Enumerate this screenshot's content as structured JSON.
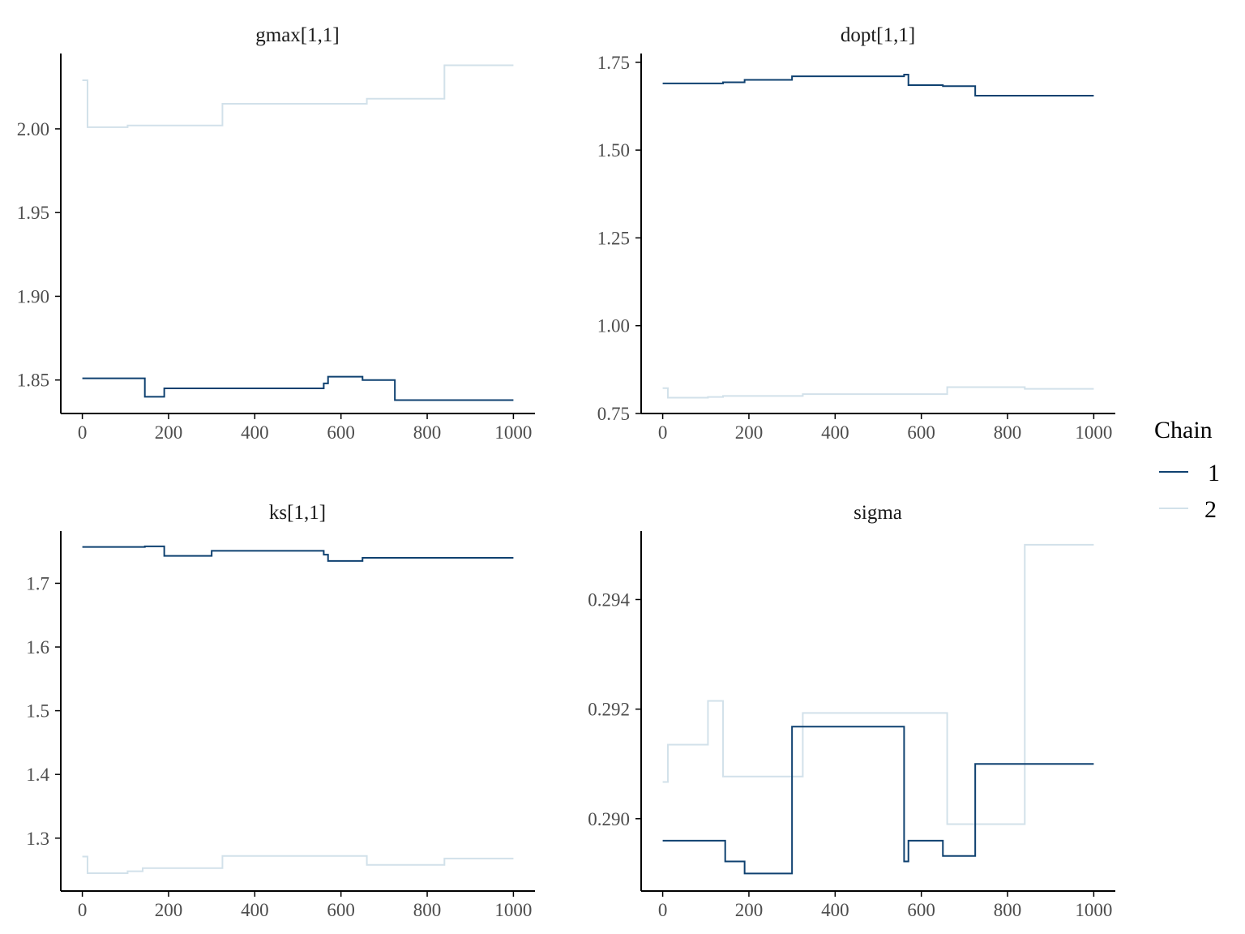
{
  "colors": {
    "chain_1": "#0f4170",
    "chain_2": "#d2e1ea",
    "axis": "#000000"
  },
  "legend": {
    "title": "Chain",
    "entries": [
      {
        "label": "1",
        "color": "#0f4170"
      },
      {
        "label": "2",
        "color": "#d2e1ea"
      }
    ]
  },
  "chart_data": [
    {
      "type": "line",
      "title": "gmax[1,1]",
      "xlim": [
        -50,
        1050
      ],
      "ylim": [
        1.83,
        2.045
      ],
      "xticks": [
        0,
        200,
        400,
        600,
        800,
        1000
      ],
      "xtick_labels": [
        "0",
        "200",
        "400",
        "600",
        "800",
        "1000"
      ],
      "yticks": [
        1.85,
        1.9,
        1.95,
        2.0
      ],
      "ytick_labels": [
        "1.85",
        "1.90",
        "1.95",
        "2.00"
      ],
      "series": [
        {
          "name": "1",
          "steps": [
            [
              0,
              1.851
            ],
            [
              145,
              1.84
            ],
            [
              190,
              1.845
            ],
            [
              300,
              1.845
            ],
            [
              560,
              1.848
            ],
            [
              570,
              1.852
            ],
            [
              650,
              1.85
            ],
            [
              725,
              1.838
            ],
            [
              1000,
              1.838
            ]
          ]
        },
        {
          "name": "2",
          "steps": [
            [
              0,
              2.029
            ],
            [
              12,
              2.001
            ],
            [
              105,
              2.002
            ],
            [
              325,
              2.015
            ],
            [
              660,
              2.018
            ],
            [
              840,
              2.038
            ],
            [
              1000,
              2.038
            ]
          ]
        }
      ]
    },
    {
      "type": "line",
      "title": "dopt[1,1]",
      "xlim": [
        -50,
        1050
      ],
      "ylim": [
        0.75,
        1.775
      ],
      "xticks": [
        0,
        200,
        400,
        600,
        800,
        1000
      ],
      "xtick_labels": [
        "0",
        "200",
        "400",
        "600",
        "800",
        "1000"
      ],
      "yticks": [
        0.75,
        1.0,
        1.25,
        1.5,
        1.75
      ],
      "ytick_labels": [
        "0.75",
        "1.00",
        "1.25",
        "1.50",
        "1.75"
      ],
      "series": [
        {
          "name": "1",
          "steps": [
            [
              0,
              1.69
            ],
            [
              140,
              1.693
            ],
            [
              190,
              1.7
            ],
            [
              300,
              1.71
            ],
            [
              560,
              1.715
            ],
            [
              570,
              1.685
            ],
            [
              650,
              1.682
            ],
            [
              725,
              1.655
            ],
            [
              1000,
              1.655
            ]
          ]
        },
        {
          "name": "2",
          "steps": [
            [
              0,
              0.822
            ],
            [
              12,
              0.795
            ],
            [
              105,
              0.797
            ],
            [
              140,
              0.8
            ],
            [
              325,
              0.805
            ],
            [
              660,
              0.825
            ],
            [
              840,
              0.82
            ],
            [
              1000,
              0.82
            ]
          ]
        }
      ]
    },
    {
      "type": "line",
      "title": "ks[1,1]",
      "xlim": [
        -50,
        1050
      ],
      "ylim": [
        1.217,
        1.782
      ],
      "xticks": [
        0,
        200,
        400,
        600,
        800,
        1000
      ],
      "xtick_labels": [
        "0",
        "200",
        "400",
        "600",
        "800",
        "1000"
      ],
      "yticks": [
        1.3,
        1.4,
        1.5,
        1.6,
        1.7
      ],
      "ytick_labels": [
        "1.3",
        "1.4",
        "1.5",
        "1.6",
        "1.7"
      ],
      "series": [
        {
          "name": "1",
          "steps": [
            [
              0,
              1.757
            ],
            [
              145,
              1.758
            ],
            [
              190,
              1.743
            ],
            [
              300,
              1.751
            ],
            [
              560,
              1.745
            ],
            [
              570,
              1.735
            ],
            [
              650,
              1.74
            ],
            [
              725,
              1.74
            ],
            [
              1000,
              1.74
            ]
          ]
        },
        {
          "name": "2",
          "steps": [
            [
              0,
              1.271
            ],
            [
              12,
              1.245
            ],
            [
              105,
              1.248
            ],
            [
              140,
              1.253
            ],
            [
              325,
              1.272
            ],
            [
              660,
              1.258
            ],
            [
              840,
              1.268
            ],
            [
              1000,
              1.268
            ]
          ]
        }
      ]
    },
    {
      "type": "line",
      "title": "sigma",
      "xlim": [
        -50,
        1050
      ],
      "ylim": [
        0.28868,
        0.29525
      ],
      "xticks": [
        0,
        200,
        400,
        600,
        800,
        1000
      ],
      "xtick_labels": [
        "0",
        "200",
        "400",
        "600",
        "800",
        "1000"
      ],
      "yticks": [
        0.29,
        0.292,
        0.294
      ],
      "ytick_labels": [
        "0.290",
        "0.292",
        "0.294"
      ],
      "series": [
        {
          "name": "1",
          "steps": [
            [
              0,
              0.2896
            ],
            [
              145,
              0.28922
            ],
            [
              190,
              0.289
            ],
            [
              300,
              0.29168
            ],
            [
              560,
              0.28922
            ],
            [
              570,
              0.2896
            ],
            [
              650,
              0.28932
            ],
            [
              725,
              0.291
            ],
            [
              1000,
              0.291
            ]
          ]
        },
        {
          "name": "2",
          "steps": [
            [
              0,
              0.29067
            ],
            [
              12,
              0.29135
            ],
            [
              105,
              0.29215
            ],
            [
              140,
              0.29077
            ],
            [
              325,
              0.29193
            ],
            [
              660,
              0.2899
            ],
            [
              840,
              0.295
            ],
            [
              1000,
              0.295
            ]
          ]
        }
      ]
    }
  ]
}
